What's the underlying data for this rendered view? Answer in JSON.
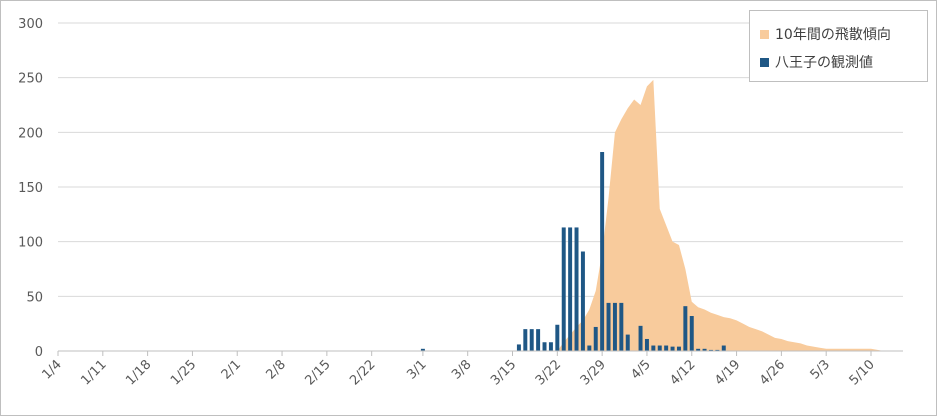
{
  "chart_data": {
    "type": "bar+area",
    "title": "",
    "xlabel": "",
    "ylabel": "",
    "ylim": [
      0,
      300
    ],
    "yticks": [
      0,
      50,
      100,
      150,
      200,
      250,
      300
    ],
    "x_tick_labels": [
      "1/4",
      "1/11",
      "1/18",
      "1/25",
      "2/1",
      "2/8",
      "2/15",
      "2/22",
      "3/1",
      "3/8",
      "3/15",
      "3/22",
      "3/29",
      "4/5",
      "4/12",
      "4/19",
      "4/26",
      "5/3",
      "5/10"
    ],
    "grid": true,
    "legend_position": "top-right",
    "colors": {
      "area": "#f8cb9c",
      "bar": "#1f5785",
      "grid": "#d9d9d9",
      "axis": "#bfbfbf"
    },
    "series": [
      {
        "name": "10年間の飛散傾向",
        "kind": "area",
        "points": [
          [
            "3/22",
            0
          ],
          [
            "3/23",
            8
          ],
          [
            "3/24",
            15
          ],
          [
            "3/25",
            22
          ],
          [
            "3/26",
            28
          ],
          [
            "3/27",
            38
          ],
          [
            "3/28",
            55
          ],
          [
            "3/29",
            90
          ],
          [
            "3/30",
            140
          ],
          [
            "3/31",
            200
          ],
          [
            "4/1",
            212
          ],
          [
            "4/2",
            222
          ],
          [
            "4/3",
            230
          ],
          [
            "4/4",
            225
          ],
          [
            "4/5",
            242
          ],
          [
            "4/6",
            248
          ],
          [
            "4/7",
            130
          ],
          [
            "4/8",
            115
          ],
          [
            "4/9",
            100
          ],
          [
            "4/10",
            97
          ],
          [
            "4/11",
            75
          ],
          [
            "4/12",
            45
          ],
          [
            "4/13",
            40
          ],
          [
            "4/14",
            38
          ],
          [
            "4/15",
            35
          ],
          [
            "4/16",
            33
          ],
          [
            "4/17",
            31
          ],
          [
            "4/18",
            30
          ],
          [
            "4/19",
            28
          ],
          [
            "4/20",
            25
          ],
          [
            "4/21",
            22
          ],
          [
            "4/22",
            20
          ],
          [
            "4/23",
            18
          ],
          [
            "4/24",
            15
          ],
          [
            "4/25",
            12
          ],
          [
            "4/26",
            11
          ],
          [
            "4/27",
            9
          ],
          [
            "4/28",
            8
          ],
          [
            "4/29",
            7
          ],
          [
            "4/30",
            5
          ],
          [
            "5/1",
            4
          ],
          [
            "5/2",
            3
          ],
          [
            "5/3",
            2
          ],
          [
            "5/4",
            2
          ],
          [
            "5/5",
            2
          ],
          [
            "5/6",
            2
          ],
          [
            "5/7",
            2
          ],
          [
            "5/8",
            2
          ],
          [
            "5/9",
            2
          ],
          [
            "5/10",
            2
          ],
          [
            "5/11",
            1
          ],
          [
            "5/12",
            0
          ]
        ]
      },
      {
        "name": "八王子の観測値",
        "kind": "bar",
        "points": [
          [
            "3/1",
            2
          ],
          [
            "3/16",
            6
          ],
          [
            "3/17",
            20
          ],
          [
            "3/18",
            20
          ],
          [
            "3/19",
            20
          ],
          [
            "3/20",
            8
          ],
          [
            "3/21",
            8
          ],
          [
            "3/22",
            24
          ],
          [
            "3/23",
            113
          ],
          [
            "3/24",
            113
          ],
          [
            "3/25",
            113
          ],
          [
            "3/26",
            91
          ],
          [
            "3/27",
            5
          ],
          [
            "3/28",
            22
          ],
          [
            "3/29",
            182
          ],
          [
            "3/30",
            44
          ],
          [
            "3/31",
            44
          ],
          [
            "4/1",
            44
          ],
          [
            "4/2",
            15
          ],
          [
            "4/3",
            0
          ],
          [
            "4/4",
            23
          ],
          [
            "4/5",
            11
          ],
          [
            "4/6",
            5
          ],
          [
            "4/7",
            5
          ],
          [
            "4/8",
            5
          ],
          [
            "4/9",
            4
          ],
          [
            "4/10",
            4
          ],
          [
            "4/11",
            41
          ],
          [
            "4/12",
            32
          ],
          [
            "4/13",
            2
          ],
          [
            "4/14",
            2
          ],
          [
            "4/15",
            1
          ],
          [
            "4/16",
            1
          ],
          [
            "4/17",
            5
          ]
        ]
      }
    ]
  }
}
